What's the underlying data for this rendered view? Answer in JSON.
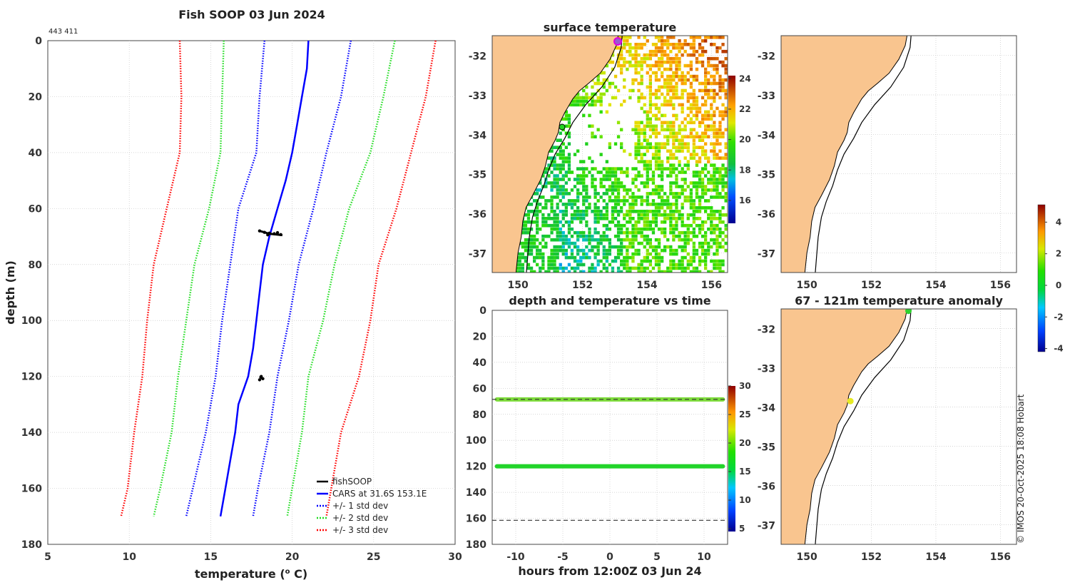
{
  "figure": {
    "title": "Fish SOOP 03 Jun 2024",
    "id_label": "443 411",
    "credit": "© IMOS 20-Oct-2025 18:08 Hobart",
    "colors": {
      "land": "#f9c58f",
      "grid": "#c8c8c8",
      "coast": "#000000"
    }
  },
  "chart_data": [
    {
      "type": "line",
      "name": "profile",
      "title": "Fish SOOP 03 Jun 2024",
      "xlabel": "temperature (",
      "xlabel_sup": "o",
      "xlabel_tail": " C)",
      "ylabel": "depth (m)",
      "xlim": [
        5,
        30
      ],
      "ylim": [
        0,
        180
      ],
      "y_inverted": true,
      "xticks": [
        "5",
        "10",
        "15",
        "20",
        "25",
        "30"
      ],
      "yticks": [
        "0",
        "20",
        "40",
        "60",
        "80",
        "100",
        "120",
        "140",
        "160",
        "180"
      ],
      "legend_position": "bottom-right",
      "legend": [
        "fishSOOP",
        "CARS at 31.6S 153.1E",
        "+/- 1 std dev",
        "+/- 2 std dev",
        "+/- 3 std dev"
      ],
      "series": [
        {
          "name": "CARS at 31.6S 153.1E",
          "color": "#0000ff",
          "style": "solid",
          "depth": [
            0,
            10,
            20,
            30,
            40,
            50,
            60,
            70,
            80,
            90,
            100,
            110,
            120,
            130,
            140,
            150,
            160,
            170
          ],
          "temp": [
            21.0,
            20.9,
            20.6,
            20.3,
            20.0,
            19.6,
            19.1,
            18.6,
            18.2,
            18.0,
            17.8,
            17.6,
            17.3,
            16.7,
            16.5,
            16.2,
            15.9,
            15.6
          ]
        },
        {
          "name": "+1 std dev",
          "color": "#0000ff",
          "style": "dotted",
          "depth": [
            0,
            20,
            40,
            60,
            80,
            100,
            120,
            140,
            160,
            170
          ],
          "temp": [
            23.6,
            23.0,
            22.1,
            21.3,
            20.4,
            19.8,
            19.1,
            18.6,
            17.9,
            17.6
          ]
        },
        {
          "name": "-1 std dev",
          "color": "#0000ff",
          "style": "dotted",
          "depth": [
            0,
            20,
            40,
            60,
            80,
            100,
            120,
            140,
            160,
            170
          ],
          "temp": [
            18.3,
            18.0,
            17.8,
            16.7,
            16.2,
            15.7,
            15.3,
            14.7,
            13.9,
            13.5
          ]
        },
        {
          "name": "+2 std dev",
          "color": "#22dd22",
          "style": "dotted",
          "depth": [
            0,
            20,
            40,
            60,
            80,
            100,
            120,
            140,
            160,
            170
          ],
          "temp": [
            26.3,
            25.6,
            24.8,
            23.5,
            22.6,
            21.9,
            21.0,
            20.6,
            20.0,
            19.7
          ]
        },
        {
          "name": "-2 std dev",
          "color": "#22dd22",
          "style": "dotted",
          "depth": [
            0,
            20,
            40,
            60,
            80,
            100,
            120,
            140,
            160,
            170
          ],
          "temp": [
            15.8,
            15.7,
            15.6,
            14.9,
            14.0,
            13.5,
            13.0,
            12.6,
            11.9,
            11.5
          ]
        },
        {
          "name": "+3 std dev",
          "color": "#ff0000",
          "style": "dotted",
          "depth": [
            0,
            20,
            40,
            60,
            80,
            100,
            120,
            140,
            160,
            170
          ],
          "temp": [
            28.8,
            28.2,
            27.3,
            26.4,
            25.3,
            24.8,
            24.1,
            23.0,
            22.4,
            22.1
          ]
        },
        {
          "name": "-3 std dev",
          "color": "#ff0000",
          "style": "dotted",
          "depth": [
            0,
            20,
            40,
            60,
            80,
            100,
            120,
            140,
            160,
            170
          ],
          "temp": [
            13.1,
            13.2,
            13.1,
            12.3,
            11.5,
            11.1,
            10.8,
            10.3,
            9.9,
            9.5
          ]
        }
      ],
      "fishsoop_points": [
        {
          "t": 18.0,
          "d": 68.0
        },
        {
          "t": 18.3,
          "d": 68.5
        },
        {
          "t": 18.6,
          "d": 68.8
        },
        {
          "t": 18.9,
          "d": 69.0
        },
        {
          "t": 19.1,
          "d": 68.6
        },
        {
          "t": 19.3,
          "d": 69.3
        },
        {
          "t": 18.5,
          "d": 69.4
        },
        {
          "t": 18.1,
          "d": 120.0
        },
        {
          "t": 18.2,
          "d": 120.8
        },
        {
          "t": 18.0,
          "d": 121.2
        }
      ]
    },
    {
      "type": "heatmap",
      "name": "surface_temperature",
      "title": "surface temperature",
      "xlim": [
        149.2,
        156.5
      ],
      "ylim": [
        -37.5,
        -31.5
      ],
      "xticks": [
        "150",
        "152",
        "154",
        "156"
      ],
      "yticks": [
        "-32",
        "-33",
        "-34",
        "-35",
        "-36",
        "-37"
      ],
      "colorbar": {
        "range": [
          14.5,
          24.2
        ],
        "ticks": [
          "24",
          "22",
          "20",
          "18",
          "16"
        ]
      }
    },
    {
      "type": "scatter",
      "name": "depth_temp_vs_time",
      "title": "depth and temperature vs time",
      "xlabel": "hours from 12:00Z 03 Jun 24",
      "xlim": [
        -12.5,
        12.5
      ],
      "ylim": [
        0,
        180
      ],
      "y_inverted": true,
      "xticks": [
        "-10",
        "-5",
        "0",
        "5",
        "10"
      ],
      "yticks": [
        "0",
        "20",
        "40",
        "60",
        "80",
        "100",
        "120",
        "140",
        "160",
        "180"
      ],
      "dashed_depths": [
        68.5,
        161.5
      ],
      "colorbar": {
        "range": [
          4.5,
          30
        ],
        "ticks": [
          "30",
          "25",
          "20",
          "15",
          "10",
          "5"
        ]
      },
      "series": [
        {
          "name": "upper",
          "depth": 68.5,
          "color": "#7ddc3a"
        },
        {
          "name": "lower",
          "depth": 120.0,
          "color": "#22d42a"
        }
      ]
    },
    {
      "type": "scatter",
      "name": "track_map",
      "xlim": [
        149.2,
        156.5
      ],
      "ylim": [
        -37.5,
        -31.5
      ],
      "xticks": [
        "150",
        "152",
        "154",
        "156"
      ],
      "yticks": [
        "-32",
        "-33",
        "-34",
        "-35",
        "-36",
        "-37"
      ]
    },
    {
      "type": "scatter",
      "name": "temperature_anomaly",
      "title": "67 - 121m temperature anomaly",
      "xlim": [
        149.2,
        156.5
      ],
      "ylim": [
        -37.5,
        -31.5
      ],
      "xticks": [
        "150",
        "152",
        "154",
        "156"
      ],
      "yticks": [
        "-32",
        "-33",
        "-34",
        "-35",
        "-36",
        "-37"
      ],
      "points": [
        {
          "lon": 153.15,
          "lat": -31.55,
          "anomaly": 0.0,
          "color": "#2fd12f"
        },
        {
          "lon": 151.35,
          "lat": -33.85,
          "anomaly": 2.0,
          "color": "#e6ea23"
        }
      ],
      "colorbar": {
        "range": [
          -4.2,
          5.1
        ],
        "ticks": [
          "4",
          "2",
          "0",
          "-2",
          "-4"
        ]
      }
    }
  ]
}
